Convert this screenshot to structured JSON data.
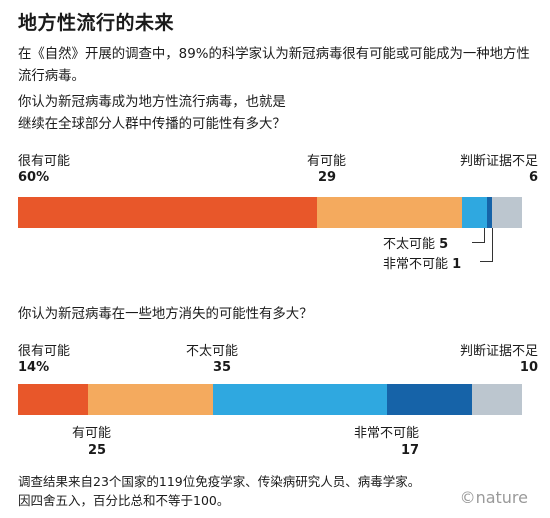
{
  "title": "地方性流行的未来",
  "subtitle": "在《自然》开展的调查中，89%的科学家认为新冠病毒很有可能或可能成为一种地方性流行病毒。",
  "footnote_lines": [
    "调查结果来自23个国家的119位免疫学家、传染病研究人员、病毒学家。",
    "因四舍五入，百分比总和不等于100。"
  ],
  "brand": "©nature",
  "chart_data": [
    {
      "type": "bar",
      "orientation": "horizontal-stacked",
      "question": [
        "你认为新冠病毒成为地方性流行病毒，也就是",
        "继续在全球部分人群中传播的可能性有多大？"
      ],
      "categories": [
        "很有可能",
        "有可能",
        "不太可能",
        "非常不可能",
        "判断证据不足"
      ],
      "value_labels": [
        "60%",
        "29",
        "5",
        "1",
        "6"
      ],
      "values": [
        60,
        29,
        5,
        1,
        6
      ],
      "colors": [
        "#e8572a",
        "#f4aa5e",
        "#2fa8e0",
        "#1663a8",
        "#bcc6cf"
      ]
    },
    {
      "type": "bar",
      "orientation": "horizontal-stacked",
      "question": [
        "你认为新冠病毒在一些地方消失的可能性有多大？"
      ],
      "categories": [
        "很有可能",
        "有可能",
        "不太可能",
        "非常不可能",
        "判断证据不足"
      ],
      "value_labels": [
        "14%",
        "25",
        "35",
        "17",
        "10"
      ],
      "values": [
        14,
        25,
        35,
        17,
        10
      ],
      "colors": [
        "#e8572a",
        "#f4aa5e",
        "#2fa8e0",
        "#1663a8",
        "#bcc6cf"
      ]
    }
  ]
}
